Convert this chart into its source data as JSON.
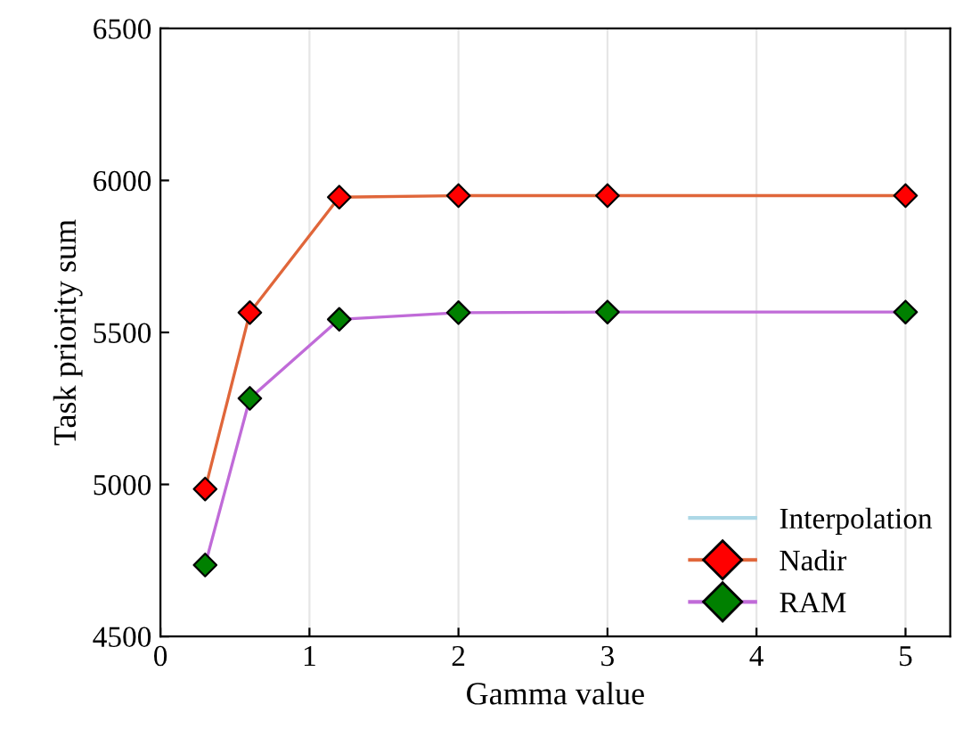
{
  "chart_data": {
    "type": "line",
    "xlabel": "Gamma value",
    "ylabel": "Task priority sum",
    "x": [
      0.3,
      0.6,
      1.2,
      2,
      3,
      5
    ],
    "series": [
      {
        "name": "Interpolation",
        "color": "#add8e6",
        "values": [
          null,
          null,
          null,
          null,
          null,
          null
        ]
      },
      {
        "name": "Nadir",
        "color": "#e0663a",
        "colors": [
          "#ff0000",
          "#ff0000",
          "#ff0000",
          "#ff0000",
          "#ff0000",
          "#ff0000"
        ],
        "values": [
          4985,
          5565,
          5945,
          5950,
          5950,
          5950
        ]
      },
      {
        "name": "RAM",
        "color": "#c06bd8",
        "colors": [
          "#008000",
          "#008000",
          "#008000",
          "#008000",
          "#008000",
          "#008000"
        ],
        "values": [
          4735,
          5283,
          5543,
          5565,
          5567,
          5567
        ]
      }
    ],
    "xlim": [
      0,
      5.3
    ],
    "xticks": [
      0,
      1,
      2,
      3,
      4,
      5
    ],
    "ylim": [
      4500,
      6500
    ],
    "yticks": [
      4500,
      5000,
      5500,
      6000,
      6500
    ],
    "grid": "x",
    "legend": "bottom right",
    "marker": "diamond",
    "line_style": "solid"
  }
}
